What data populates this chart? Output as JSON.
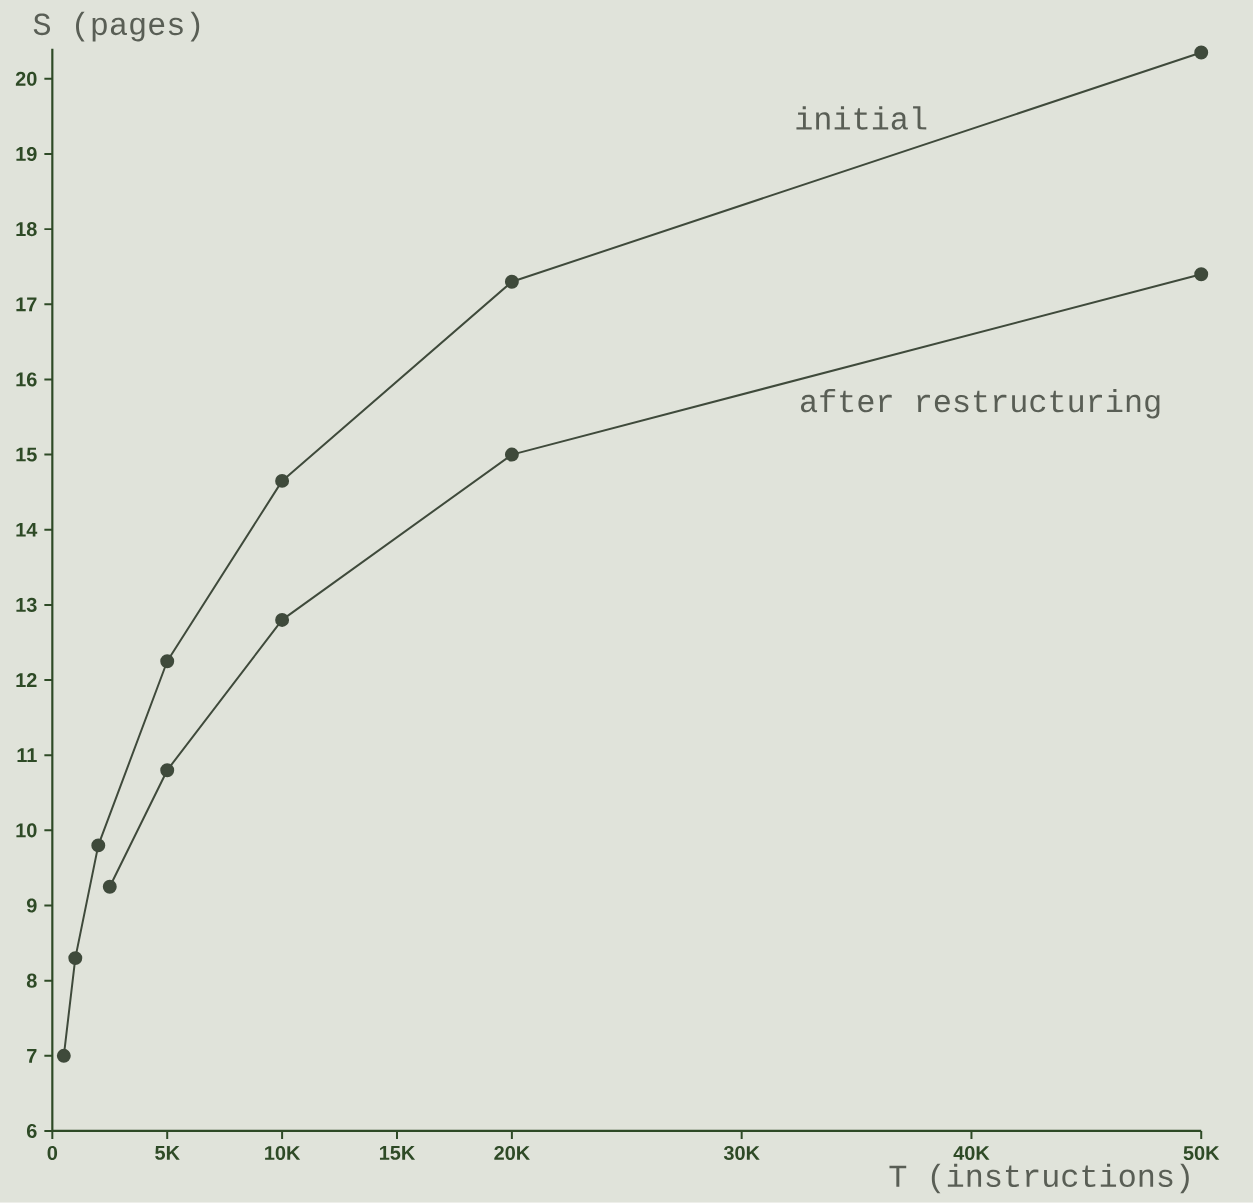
{
  "chart_data": {
    "type": "line",
    "xlabel": "T (instructions)",
    "ylabel": "S (pages)",
    "series": [
      {
        "name": "initial",
        "color": "#3f4a3b",
        "x": [
          500,
          1000,
          2000,
          5000,
          10000,
          20000,
          50000
        ],
        "values": [
          7.0,
          8.3,
          9.8,
          12.25,
          14.65,
          17.3,
          20.35
        ]
      },
      {
        "name": "after restructuring",
        "color": "#3f4a3b",
        "x": [
          2500,
          5000,
          10000,
          20000,
          50000
        ],
        "values": [
          9.25,
          10.8,
          12.8,
          15.0,
          17.4
        ]
      }
    ],
    "xlim": [
      0,
      50000
    ],
    "ylim": [
      6,
      20.4
    ],
    "xticks": [
      0,
      {
        "value": 5000,
        "label": "5K"
      },
      {
        "value": 10000,
        "label": "10K"
      },
      {
        "value": 15000,
        "label": "15K"
      },
      {
        "value": 20000,
        "label": "20K"
      },
      {
        "value": 30000,
        "label": "30K"
      },
      {
        "value": 40000,
        "label": "40K"
      },
      {
        "value": 50000,
        "label": "50K"
      }
    ],
    "yticks": [
      6,
      7,
      8,
      9,
      10,
      11,
      12,
      13,
      14,
      15,
      16,
      17,
      18,
      19,
      20
    ],
    "marker": "circle",
    "line_style": "solid"
  }
}
